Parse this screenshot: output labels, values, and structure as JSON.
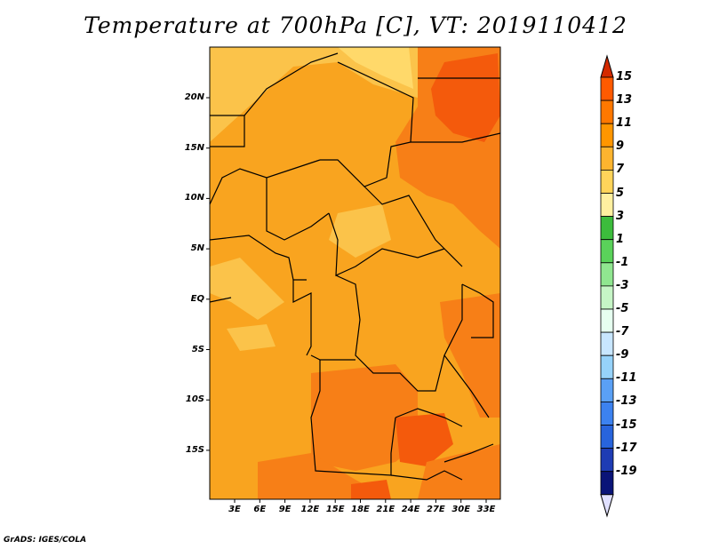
{
  "title": "Temperature at 700hPa [C], VT: 2019110412",
  "credit": "GrADS: IGES/COLA",
  "lat_labels": [
    "20N",
    "15N",
    "10N",
    "5N",
    "EQ",
    "5S",
    "10S",
    "15S"
  ],
  "lon_labels": [
    "3E",
    "6E",
    "9E",
    "12E",
    "15E",
    "18E",
    "21E",
    "24E",
    "27E",
    "30E",
    "33E"
  ],
  "colorbar": {
    "labels": [
      "15",
      "13",
      "11",
      "9",
      "7",
      "5",
      "3",
      "1",
      "-1",
      "-3",
      "-5",
      "-7",
      "-9",
      "-11",
      "-13",
      "-15",
      "-17",
      "-19"
    ],
    "colors": [
      "#ff5a00",
      "#ff7800",
      "#ff9600",
      "#fdb42f",
      "#ffd45a",
      "#fff0a0",
      "#3cbc3c",
      "#5ad25a",
      "#90e690",
      "#c6f5c6",
      "#e6fff0",
      "#c8e6ff",
      "#96d2fa",
      "#5aa0f5",
      "#3c82f0",
      "#2864dc",
      "#1e3cb4",
      "#0a1478"
    ],
    "top_arrow_color": "#d42a00",
    "bottom_arrow_color": "#e0e0ff"
  },
  "map_colors": {
    "background": "#f9a41f",
    "warm": "#f77f17",
    "hot": "#f45a0c",
    "cool": "#fbc34a",
    "cooler": "#ffd96a",
    "borders": "#000000"
  }
}
